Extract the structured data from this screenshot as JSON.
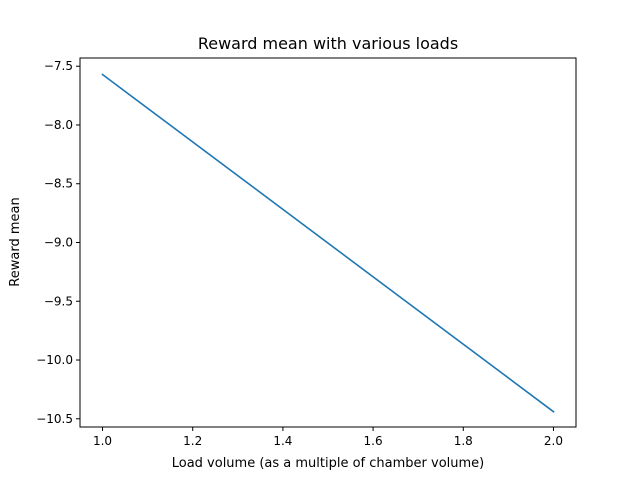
{
  "chart_data": {
    "type": "line",
    "title": "Reward mean with various loads",
    "xlabel": "Load volume (as a multiple of chamber volume)",
    "ylabel": "Reward mean",
    "xlim": [
      0.95,
      2.05
    ],
    "ylim": [
      -10.57,
      -7.43
    ],
    "x_ticks": [
      1.0,
      1.2,
      1.4,
      1.6,
      1.8,
      2.0
    ],
    "x_tick_labels": [
      "1.0",
      "1.2",
      "1.4",
      "1.6",
      "1.8",
      "2.0"
    ],
    "y_ticks": [
      -7.5,
      -8.0,
      -8.5,
      -9.0,
      -9.5,
      -10.0,
      -10.5
    ],
    "y_tick_labels": [
      "−7.5",
      "−8.0",
      "−8.5",
      "−9.0",
      "−9.5",
      "−10.0",
      "−10.5"
    ],
    "grid": false,
    "series": [
      {
        "x": [
          1.0,
          2.0
        ],
        "y": [
          -7.57,
          -10.44
        ],
        "color": "#1f77b4"
      }
    ]
  }
}
